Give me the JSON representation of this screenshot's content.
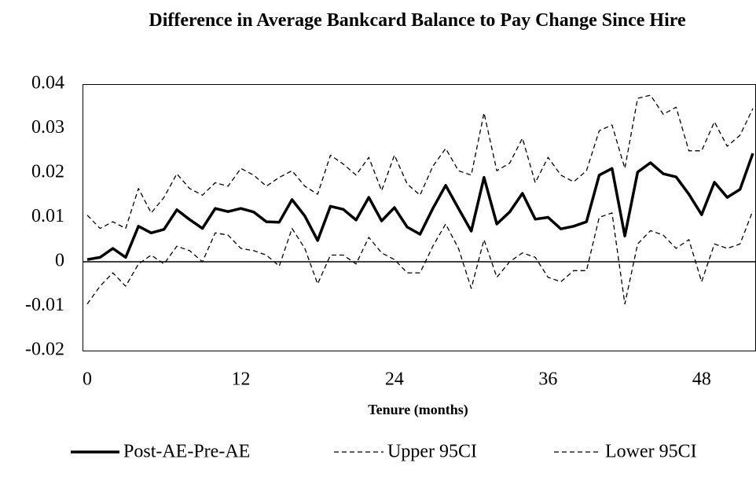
{
  "chart_data": {
    "type": "line",
    "title": "Difference in Average Bankcard Balance to Pay Change Since Hire",
    "x_label": "Tenure (months)",
    "x": [
      0,
      1,
      2,
      3,
      4,
      5,
      6,
      7,
      8,
      9,
      10,
      11,
      12,
      13,
      14,
      15,
      16,
      17,
      18,
      19,
      20,
      21,
      22,
      23,
      24,
      25,
      26,
      27,
      28,
      29,
      30,
      31,
      32,
      33,
      34,
      35,
      36,
      37,
      38,
      39,
      40,
      41,
      42,
      43,
      44,
      45,
      46,
      47,
      48,
      49,
      50,
      51,
      52
    ],
    "xlim": [
      0,
      52
    ],
    "xticks": [
      0,
      12,
      24,
      36,
      48
    ],
    "ylim": [
      -0.02,
      0.04
    ],
    "yticks": [
      -0.02,
      -0.01,
      0,
      0.01,
      0.02,
      0.03,
      0.04
    ],
    "legend": "bottom",
    "series": [
      {
        "name": "Post-AE-Pre-AE",
        "color": "#000000",
        "dash": false,
        "values": [
          0.0005,
          0.001,
          0.003,
          0.001,
          0.008,
          0.0065,
          0.0073,
          0.0117,
          0.0095,
          0.0075,
          0.012,
          0.0113,
          0.012,
          0.0112,
          0.009,
          0.0089,
          0.014,
          0.0103,
          0.0048,
          0.0125,
          0.0118,
          0.0094,
          0.0145,
          0.0092,
          0.0122,
          0.0078,
          0.0062,
          0.012,
          0.0172,
          0.012,
          0.0069,
          0.019,
          0.0085,
          0.0112,
          0.0154,
          0.0096,
          0.01,
          0.0074,
          0.008,
          0.009,
          0.0195,
          0.021,
          0.0058,
          0.0202,
          0.0223,
          0.0198,
          0.0191,
          0.0152,
          0.0106,
          0.0179,
          0.0145,
          0.0163,
          0.0244
        ]
      },
      {
        "name": "Upper 95CI",
        "color": "#000000",
        "dash": true,
        "values": [
          0.0105,
          0.0075,
          0.009,
          0.0075,
          0.0165,
          0.011,
          0.0145,
          0.0198,
          0.0165,
          0.015,
          0.0178,
          0.017,
          0.021,
          0.0195,
          0.017,
          0.019,
          0.0205,
          0.017,
          0.0152,
          0.024,
          0.022,
          0.0195,
          0.0235,
          0.016,
          0.024,
          0.0175,
          0.015,
          0.0215,
          0.0255,
          0.0205,
          0.0195,
          0.0335,
          0.0205,
          0.0222,
          0.0278,
          0.0178,
          0.0235,
          0.0195,
          0.018,
          0.0205,
          0.0295,
          0.0308,
          0.021,
          0.0368,
          0.0375,
          0.0332,
          0.0348,
          0.025,
          0.025,
          0.0315,
          0.026,
          0.0285,
          0.0345
        ]
      },
      {
        "name": "Lower 95CI",
        "color": "#000000",
        "dash": true,
        "values": [
          -0.0095,
          -0.0055,
          -0.0025,
          -0.0055,
          -0.0005,
          0.0015,
          -0.0005,
          0.0035,
          0.0025,
          0,
          0.0065,
          0.006,
          0.003,
          0.0025,
          0.0015,
          -0.001,
          0.0075,
          0.003,
          -0.005,
          0.0015,
          0.0015,
          -0.0005,
          0.0055,
          0.002,
          0.0005,
          -0.0025,
          -0.0025,
          0.0035,
          0.0085,
          0.003,
          -0.006,
          0.005,
          -0.0035,
          0,
          0.002,
          0.001,
          -0.0035,
          -0.0045,
          -0.002,
          -0.002,
          0.01,
          0.011,
          -0.0095,
          0.004,
          0.007,
          0.006,
          0.003,
          0.005,
          -0.0045,
          0.004,
          0.003,
          0.004,
          0.0115
        ]
      }
    ]
  }
}
